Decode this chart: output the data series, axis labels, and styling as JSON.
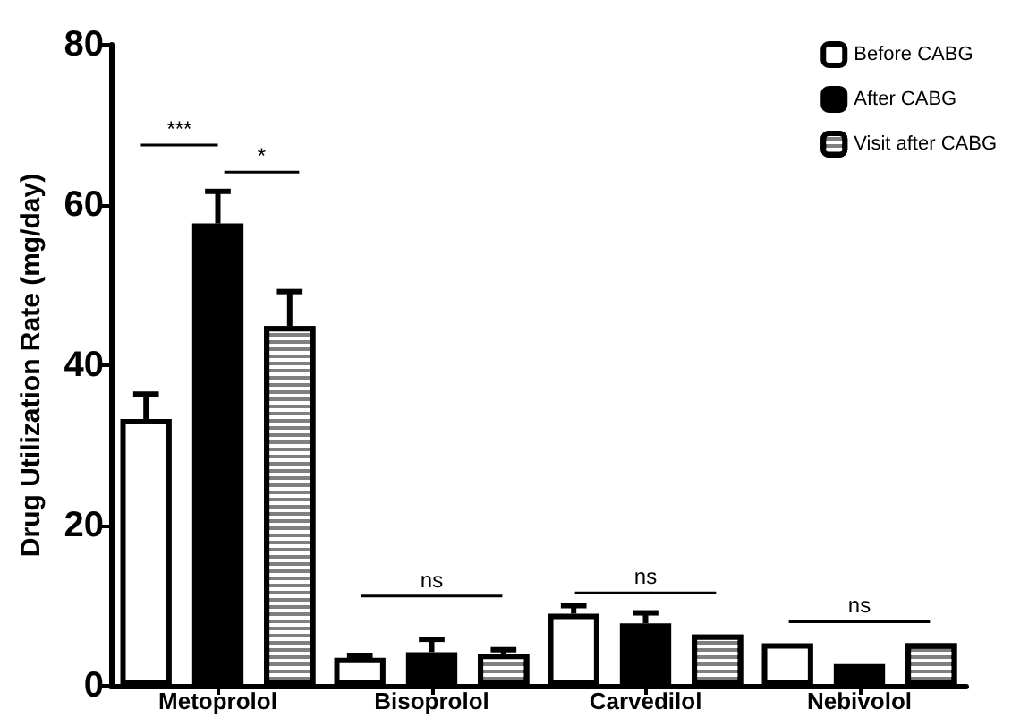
{
  "chart_data": {
    "type": "bar",
    "ylabel": "Drug Utilization Rate (mg/day)",
    "categories": [
      "Metoprolol",
      "Bisoprolol",
      "Carvedilol",
      "Nebivolol"
    ],
    "series": [
      {
        "name": "Before CABG",
        "color": "#ffffff",
        "values": [
          33.3,
          3.5,
          9.0,
          5.3
        ],
        "errors": [
          [
            33.3,
            36.4
          ],
          [
            3.5,
            3.8
          ],
          [
            9.0,
            10.0
          ],
          null
        ]
      },
      {
        "name": "After CABG",
        "color": "#000000",
        "values": [
          57.7,
          4.2,
          7.8,
          2.7
        ],
        "errors": [
          [
            57.7,
            61.7
          ],
          [
            4.2,
            5.8
          ],
          [
            7.8,
            9.1
          ],
          null
        ]
      },
      {
        "name": "Visit after CABG",
        "color": "#808080",
        "values": [
          44.9,
          4.0,
          6.4,
          5.3
        ],
        "errors": [
          [
            44.9,
            49.2
          ],
          [
            4.0,
            4.5
          ],
          null,
          null
        ]
      }
    ],
    "annotations": [
      "***",
      "*",
      "ns",
      "ns",
      "ns"
    ],
    "ylim": [
      0,
      80
    ],
    "yticks": [
      0,
      20,
      40,
      60,
      80
    ],
    "grid": false,
    "legend": "top right"
  }
}
